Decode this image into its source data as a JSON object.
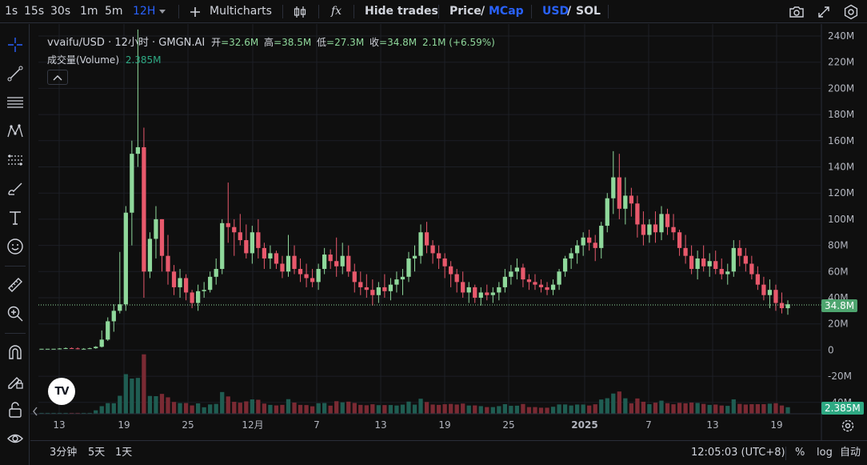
{
  "toolbar": {
    "intervals": [
      {
        "label": "1s",
        "active": false
      },
      {
        "label": "15s",
        "active": false
      },
      {
        "label": "30s",
        "active": false
      },
      {
        "label": "1m",
        "active": false
      },
      {
        "label": "5m",
        "active": false
      },
      {
        "label": "12H",
        "active": true
      }
    ],
    "multicharts": "Multicharts",
    "fx": "fx",
    "hide_trades": "Hide trades",
    "price": "Price",
    "slash": "/",
    "mcap": "MCap",
    "usd": "USD",
    "sol": "SOL"
  },
  "legend": {
    "symbol": "vvaifu/USD · 12小时 · GMGN.AI",
    "open_label": "开",
    "open": "=32.6M",
    "high_label": "高",
    "high": "=38.5M",
    "low_label": "低",
    "low": "=27.3M",
    "close_label": "收",
    "close": "=34.8M",
    "change": "2.1M (+6.59%)",
    "volume_label": "成交量(Volume)",
    "volume_value": "2.385M"
  },
  "price_axis": {
    "labels": [
      "240M",
      "220M",
      "200M",
      "180M",
      "160M",
      "140M",
      "120M",
      "100M",
      "80M",
      "60M",
      "40M",
      "20M",
      "0",
      "-20M",
      "-40M"
    ],
    "current_price": "34.8M",
    "current_volume": "2.385M"
  },
  "time_axis": {
    "labels": [
      {
        "text": "13",
        "bold": false
      },
      {
        "text": "19",
        "bold": false
      },
      {
        "text": "25",
        "bold": false
      },
      {
        "text": "12月",
        "bold": false
      },
      {
        "text": "7",
        "bold": false
      },
      {
        "text": "13",
        "bold": false
      },
      {
        "text": "19",
        "bold": false
      },
      {
        "text": "25",
        "bold": false
      },
      {
        "text": "2025",
        "bold": true
      },
      {
        "text": "7",
        "bold": false
      },
      {
        "text": "13",
        "bold": false
      },
      {
        "text": "19",
        "bold": false
      }
    ]
  },
  "bottom": {
    "ranges": [
      "3分钟",
      "5天",
      "1天"
    ],
    "clock": "12:05:03 (UTC+8)",
    "percent": "%",
    "log": "log",
    "auto": "自动"
  },
  "logo": "TV",
  "colors": {
    "up": "#8fd89b",
    "down": "#e8596c",
    "vol_up": "#1f5d52",
    "vol_down": "#7a2a33",
    "accent": "#2962ff",
    "label_green": "#2ea983"
  },
  "icons": {
    "sidebar": [
      "crosshair-icon",
      "trendline-icon",
      "fib-lines-icon",
      "pattern-icon",
      "measure-lines-icon",
      "brush-icon",
      "text-icon",
      "emoji-icon",
      "ruler-icon",
      "zoom-icon",
      "magnet-icon",
      "lock-drawing-icon",
      "lock-icon",
      "eye-icon"
    ],
    "top_right": [
      "camera-icon",
      "fullscreen-icon",
      "settings-icon"
    ]
  },
  "chart_data": {
    "type": "candlestick",
    "title": "vvaifu/USD · 12小时 · GMGN.AI",
    "xlabel": "",
    "ylabel": "",
    "ylim": [
      -40,
      245
    ],
    "unit": "M",
    "interval": "12H",
    "date_labels": [
      "13",
      "19",
      "25",
      "12月",
      "7",
      "13",
      "19",
      "25",
      "2025",
      "7",
      "13",
      "19"
    ],
    "ohlc_approx_M": [
      [
        1,
        1,
        1,
        1
      ],
      [
        1,
        1,
        1,
        1
      ],
      [
        1,
        1,
        1,
        1
      ],
      [
        1,
        1.5,
        0.5,
        1.2
      ],
      [
        1.2,
        2,
        0.8,
        1.5
      ],
      [
        1.5,
        2,
        1,
        1.3
      ],
      [
        1.3,
        2,
        0.6,
        0.9
      ],
      [
        0.9,
        1.5,
        0.5,
        1.0
      ],
      [
        1.0,
        1.8,
        0.8,
        1.4
      ],
      [
        1.4,
        3,
        1,
        2.5
      ],
      [
        2.5,
        15,
        2,
        8
      ],
      [
        8,
        25,
        7,
        22
      ],
      [
        22,
        35,
        14,
        30
      ],
      [
        30,
        75,
        28,
        35
      ],
      [
        35,
        110,
        30,
        105
      ],
      [
        105,
        160,
        80,
        150
      ],
      [
        150,
        245,
        140,
        155
      ],
      [
        155,
        170,
        40,
        60
      ],
      [
        60,
        90,
        55,
        85
      ],
      [
        85,
        110,
        70,
        100
      ],
      [
        100,
        100,
        60,
        72
      ],
      [
        72,
        88,
        50,
        60
      ],
      [
        60,
        65,
        42,
        48
      ],
      [
        48,
        62,
        40,
        55
      ],
      [
        55,
        58,
        38,
        44
      ],
      [
        44,
        46,
        32,
        36
      ],
      [
        36,
        50,
        30,
        45
      ],
      [
        45,
        52,
        40,
        46
      ],
      [
        46,
        60,
        44,
        56
      ],
      [
        56,
        70,
        50,
        62
      ],
      [
        62,
        100,
        58,
        97
      ],
      [
        97,
        128,
        82,
        94
      ],
      [
        94,
        100,
        72,
        90
      ],
      [
        90,
        104,
        80,
        84
      ],
      [
        84,
        96,
        70,
        74
      ],
      [
        74,
        95,
        66,
        90
      ],
      [
        90,
        100,
        70,
        78
      ],
      [
        78,
        82,
        62,
        70
      ],
      [
        70,
        80,
        62,
        74
      ],
      [
        74,
        76,
        62,
        66
      ],
      [
        66,
        72,
        55,
        60
      ],
      [
        60,
        88,
        56,
        72
      ],
      [
        72,
        80,
        58,
        62
      ],
      [
        62,
        70,
        52,
        58
      ],
      [
        58,
        66,
        48,
        55
      ],
      [
        55,
        62,
        48,
        52
      ],
      [
        52,
        66,
        46,
        62
      ],
      [
        62,
        78,
        58,
        73
      ],
      [
        73,
        77,
        62,
        68
      ],
      [
        68,
        86,
        56,
        64
      ],
      [
        64,
        82,
        58,
        72
      ],
      [
        72,
        80,
        56,
        60
      ],
      [
        60,
        66,
        44,
        52
      ],
      [
        52,
        60,
        42,
        48
      ],
      [
        48,
        58,
        40,
        46
      ],
      [
        46,
        54,
        34,
        42
      ],
      [
        42,
        52,
        36,
        48
      ],
      [
        48,
        58,
        40,
        45
      ],
      [
        45,
        55,
        38,
        50
      ],
      [
        50,
        60,
        44,
        54
      ],
      [
        54,
        62,
        42,
        56
      ],
      [
        56,
        75,
        52,
        70
      ],
      [
        70,
        80,
        60,
        72
      ],
      [
        72,
        96,
        66,
        90
      ],
      [
        90,
        98,
        74,
        80
      ],
      [
        80,
        84,
        66,
        74
      ],
      [
        74,
        80,
        62,
        70
      ],
      [
        70,
        74,
        55,
        64
      ],
      [
        64,
        68,
        48,
        58
      ],
      [
        58,
        62,
        44,
        52
      ],
      [
        52,
        60,
        40,
        44
      ],
      [
        44,
        52,
        36,
        48
      ],
      [
        48,
        50,
        36,
        40
      ],
      [
        40,
        48,
        34,
        44
      ],
      [
        44,
        50,
        38,
        42
      ],
      [
        42,
        48,
        36,
        44
      ],
      [
        44,
        52,
        38,
        48
      ],
      [
        48,
        62,
        44,
        56
      ],
      [
        56,
        65,
        50,
        60
      ],
      [
        60,
        70,
        54,
        63
      ],
      [
        63,
        66,
        48,
        54
      ],
      [
        54,
        58,
        46,
        52
      ],
      [
        52,
        58,
        46,
        50
      ],
      [
        50,
        54,
        44,
        48
      ],
      [
        48,
        52,
        42,
        46
      ],
      [
        46,
        54,
        42,
        50
      ],
      [
        50,
        62,
        46,
        60
      ],
      [
        60,
        72,
        56,
        70
      ],
      [
        70,
        78,
        62,
        74
      ],
      [
        74,
        84,
        66,
        80
      ],
      [
        80,
        90,
        72,
        86
      ],
      [
        86,
        92,
        76,
        82
      ],
      [
        82,
        88,
        68,
        78
      ],
      [
        78,
        98,
        70,
        95
      ],
      [
        95,
        120,
        90,
        116
      ],
      [
        116,
        152,
        104,
        132
      ],
      [
        132,
        150,
        100,
        108
      ],
      [
        108,
        132,
        96,
        118
      ],
      [
        118,
        124,
        102,
        112
      ],
      [
        112,
        118,
        86,
        96
      ],
      [
        96,
        106,
        80,
        88
      ],
      [
        88,
        100,
        82,
        96
      ],
      [
        96,
        106,
        82,
        90
      ],
      [
        90,
        110,
        84,
        104
      ],
      [
        104,
        108,
        88,
        94
      ],
      [
        94,
        104,
        84,
        90
      ],
      [
        90,
        92,
        72,
        78
      ],
      [
        78,
        88,
        66,
        72
      ],
      [
        72,
        80,
        58,
        62
      ],
      [
        62,
        76,
        54,
        70
      ],
      [
        70,
        80,
        60,
        64
      ],
      [
        64,
        74,
        56,
        68
      ],
      [
        68,
        76,
        58,
        62
      ],
      [
        62,
        70,
        54,
        58
      ],
      [
        58,
        66,
        50,
        60
      ],
      [
        60,
        84,
        56,
        78
      ],
      [
        78,
        84,
        64,
        72
      ],
      [
        72,
        78,
        60,
        66
      ],
      [
        66,
        72,
        54,
        58
      ],
      [
        58,
        64,
        46,
        50
      ],
      [
        50,
        56,
        38,
        42
      ],
      [
        42,
        54,
        32,
        46
      ],
      [
        46,
        50,
        30,
        36
      ],
      [
        36,
        44,
        28,
        32
      ],
      [
        32,
        38,
        27,
        35
      ]
    ]
  }
}
